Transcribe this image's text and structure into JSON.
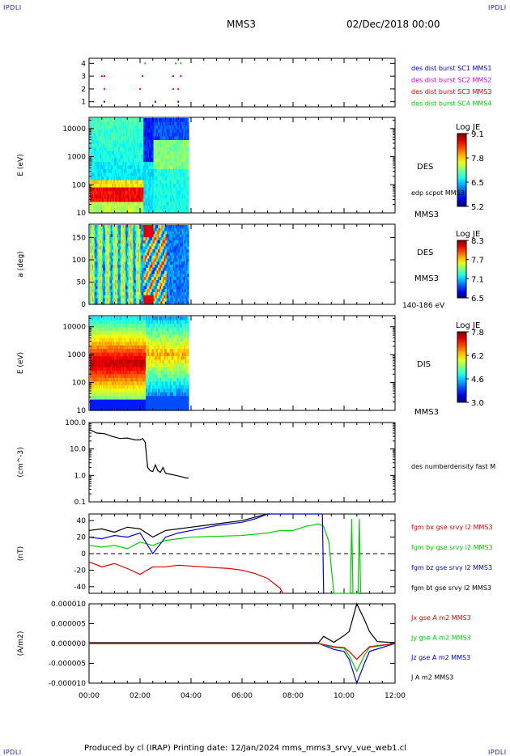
{
  "corner_marks": {
    "tl": "IPDLI",
    "tr": "IPDLI",
    "bl": "IPDLI",
    "br": "IPDLI"
  },
  "header": {
    "spacecraft": "MMS3",
    "datetime": "02/Dec/2018 00:00"
  },
  "footer": {
    "text": "Produced by cl (IRAP)   Printing date: 12/Jan/2024   mms_mms3_srvy_vue_web1.cl"
  },
  "colors": {
    "black": "#000000",
    "red": "#e00000",
    "green": "#00cc00",
    "blue": "#0000dd",
    "magenta": "#dd00dd"
  },
  "chart_data": [
    {
      "type": "scatter",
      "panel": "burst-availability",
      "y_ticks": [
        "1",
        "2",
        "3",
        "4"
      ],
      "ylim": [
        0.6,
        4.4
      ],
      "legend": [
        {
          "label": "des dist burst SC1 MMS1",
          "color": "#0000dd"
        },
        {
          "label": "des dist burst SC2 MMS2",
          "color": "#dd00dd"
        },
        {
          "label": "des dist burst SC3 MMS3",
          "color": "#e00000"
        },
        {
          "label": "des dist burst SC4 MMS4",
          "color": "#00cc00"
        }
      ],
      "series": [
        {
          "name": "des dist burst SC1 MMS1",
          "y": 1,
          "x": [
            0.6,
            2.6,
            3.5
          ]
        },
        {
          "name": "des dist burst SC2 MMS2",
          "y": 2,
          "x": [
            0.6,
            2.0,
            3.3,
            3.5
          ]
        },
        {
          "name": "des dist burst SC3 MMS3",
          "y": 3,
          "x": [
            0.5,
            0.6,
            2.1,
            3.3,
            3.6
          ]
        },
        {
          "name": "des dist burst SC4 MMS4",
          "y": 4,
          "x": [
            2.2,
            3.4,
            3.6
          ]
        }
      ]
    },
    {
      "type": "heatmap",
      "panel": "des-energy",
      "ylabel": "E (eV)",
      "y_ticks": [
        "10",
        "100",
        "1000",
        "10000"
      ],
      "scale": "log",
      "ylim": [
        10,
        25000
      ],
      "colorbar": {
        "title": "Log JE",
        "ticks": [
          "9.1",
          "7.8",
          "6.5",
          "5.2"
        ]
      },
      "label": "DES",
      "side_labels": [
        "edp scpot MMS3",
        "MMS3"
      ]
    },
    {
      "type": "heatmap",
      "panel": "des-pitch-angle",
      "ylabel": "a (deg)",
      "y_ticks": [
        "0",
        "50",
        "100",
        "150"
      ],
      "ylim": [
        0,
        180
      ],
      "colorbar": {
        "title": "Log JE",
        "ticks": [
          "8.3",
          "7.7",
          "7.1",
          "6.5"
        ]
      },
      "label": "DES",
      "side_labels": [
        "MMS3",
        "140-186 eV"
      ]
    },
    {
      "type": "heatmap",
      "panel": "dis-energy",
      "ylabel": "E (eV)",
      "y_ticks": [
        "10",
        "100",
        "1000",
        "10000"
      ],
      "scale": "log",
      "ylim": [
        10,
        25000
      ],
      "colorbar": {
        "title": "Log JE",
        "ticks": [
          "7.8",
          "6.2",
          "4.6",
          "3.0"
        ]
      },
      "label": "DIS",
      "side_labels": [
        "MMS3"
      ]
    },
    {
      "type": "line",
      "panel": "density",
      "ylabel": "(cm^-3)",
      "y_ticks": [
        "0.1",
        "1.0",
        "10.0",
        "100.0"
      ],
      "scale": "log",
      "ylim": [
        0.1,
        100
      ],
      "legend": [
        {
          "label": "des numberdensity fast M",
          "color": "#000000"
        }
      ],
      "series": [
        {
          "name": "des numberdensity fast M",
          "x": [
            0.0,
            0.3,
            0.6,
            0.9,
            1.2,
            1.5,
            1.8,
            2.0,
            2.1,
            2.2,
            2.3,
            2.4,
            2.5,
            2.6,
            2.7,
            2.8,
            2.9,
            3.0,
            3.2,
            3.4,
            3.6,
            3.8,
            3.9
          ],
          "y": [
            55,
            40,
            38,
            30,
            25,
            26,
            22,
            22,
            25,
            18,
            2.0,
            1.5,
            1.4,
            2.5,
            1.5,
            1.3,
            2.0,
            1.2,
            1.1,
            1.0,
            0.9,
            0.8,
            0.8
          ]
        }
      ]
    },
    {
      "type": "line",
      "panel": "magnetic-field",
      "ylabel": "(nT)",
      "y_ticks": [
        "-40",
        "-20",
        "0",
        "20",
        "40"
      ],
      "ylim": [
        -48,
        48
      ],
      "legend": [
        {
          "label": "fgm bx gse srvy l2 MMS3",
          "color": "#e00000"
        },
        {
          "label": "fgm by gse srvy l2 MMS3",
          "color": "#00cc00"
        },
        {
          "label": "fgm bz gse srvy l2 MMS3",
          "color": "#0000dd"
        },
        {
          "label": "fgm bt gse srvy l2 MMS3",
          "color": "#000000"
        }
      ],
      "series": [
        {
          "name": "fgm bx gse srvy l2 MMS3",
          "x": [
            0.0,
            0.5,
            1.0,
            1.5,
            2.0,
            2.5,
            3.0,
            3.5,
            4.0,
            4.5,
            5.0,
            5.5,
            6.0,
            6.5,
            7.0,
            7.5,
            7.6
          ],
          "y": [
            -10,
            -16,
            -12,
            -18,
            -25,
            -16,
            -16,
            -14,
            -15,
            -16,
            -17,
            -18,
            -20,
            -24,
            -30,
            -42,
            -48
          ]
        },
        {
          "name": "fgm by gse srvy l2 MMS3",
          "x": [
            0.0,
            0.5,
            1.0,
            1.5,
            2.0,
            2.5,
            3.0,
            3.5,
            4.0,
            5.0,
            6.0,
            7.0,
            7.5,
            8.0,
            8.5,
            9.0,
            9.2,
            9.4,
            9.6,
            10.25,
            10.3,
            10.35,
            10.55,
            10.6,
            10.65
          ],
          "y": [
            10,
            8,
            10,
            6,
            14,
            10,
            16,
            18,
            20,
            21,
            22,
            25,
            28,
            28,
            33,
            36,
            33,
            15,
            -48,
            -48,
            42,
            -48,
            -48,
            42,
            -48
          ]
        },
        {
          "name": "fgm bz gse srvy l2 MMS3",
          "x": [
            0.0,
            0.5,
            1.0,
            1.5,
            2.0,
            2.5,
            3.0,
            3.5,
            4.0,
            5.0,
            6.0,
            6.5,
            7.0,
            7.2,
            9.15,
            9.2,
            9.25
          ],
          "y": [
            20,
            18,
            22,
            20,
            25,
            0,
            20,
            25,
            28,
            34,
            38,
            42,
            48,
            48,
            48,
            -48,
            -48
          ]
        },
        {
          "name": "fgm bt gse srvy l2 MMS3",
          "x": [
            0.0,
            0.5,
            1.0,
            1.5,
            2.0,
            2.5,
            3.0,
            3.5,
            4.0,
            5.0,
            6.0,
            6.5,
            7.0,
            7.1
          ],
          "y": [
            28,
            30,
            26,
            32,
            30,
            20,
            28,
            30,
            32,
            36,
            40,
            44,
            48,
            48
          ]
        }
      ]
    },
    {
      "type": "line",
      "panel": "current-density",
      "ylabel": "(A/m2)",
      "y_ticks": [
        "-0.000010",
        "-0.000005",
        "0.000000",
        "0.000005",
        "0.000010"
      ],
      "ylim": [
        -1e-05,
        1e-05
      ],
      "x_ticks": [
        "00:00",
        "02:00",
        "04:00",
        "06:00",
        "08:00",
        "10:00",
        "12:00"
      ],
      "xlim": [
        0,
        12
      ],
      "legend": [
        {
          "label": "Jx gse A m2 MMS3",
          "color": "#e00000"
        },
        {
          "label": "Jy gse A m2 MMS3",
          "color": "#00cc00"
        },
        {
          "label": "Jz gse A m2 MMS3",
          "color": "#0000dd"
        },
        {
          "label": "J A m2 MMS3",
          "color": "#000000"
        }
      ],
      "series": [
        {
          "name": "J A m2 MMS3",
          "x": [
            0,
            9.0,
            9.2,
            9.6,
            10.0,
            10.2,
            10.5,
            10.8,
            11.0,
            11.3,
            12.0
          ],
          "y": [
            2e-07,
            2e-07,
            1.8e-06,
            3e-07,
            2e-06,
            3e-06,
            1e-05,
            6e-06,
            3e-06,
            5e-07,
            2e-07
          ]
        },
        {
          "name": "Jz gse A m2 MMS3",
          "x": [
            0,
            9.0,
            9.6,
            10.0,
            10.2,
            10.5,
            10.8,
            11.0,
            12.0
          ],
          "y": [
            0,
            0,
            -1.5e-06,
            -2e-06,
            -4e-06,
            -1e-05,
            -5e-06,
            -2e-06,
            0
          ]
        },
        {
          "name": "Jy gse A m2 MMS3",
          "x": [
            0,
            9.0,
            9.6,
            10.0,
            10.2,
            10.5,
            10.8,
            11.0,
            12.0
          ],
          "y": [
            0,
            0,
            -1e-06,
            -1.2e-06,
            -3e-06,
            -7e-06,
            -3e-06,
            -1e-06,
            0
          ]
        },
        {
          "name": "Jx gse A m2 MMS3",
          "x": [
            0,
            9.0,
            9.6,
            10.0,
            10.2,
            10.5,
            10.8,
            11.0,
            12.0
          ],
          "y": [
            0,
            0,
            -8e-07,
            -1e-06,
            -2e-06,
            -4e-06,
            -2e-06,
            -8e-07,
            0
          ]
        }
      ]
    }
  ]
}
